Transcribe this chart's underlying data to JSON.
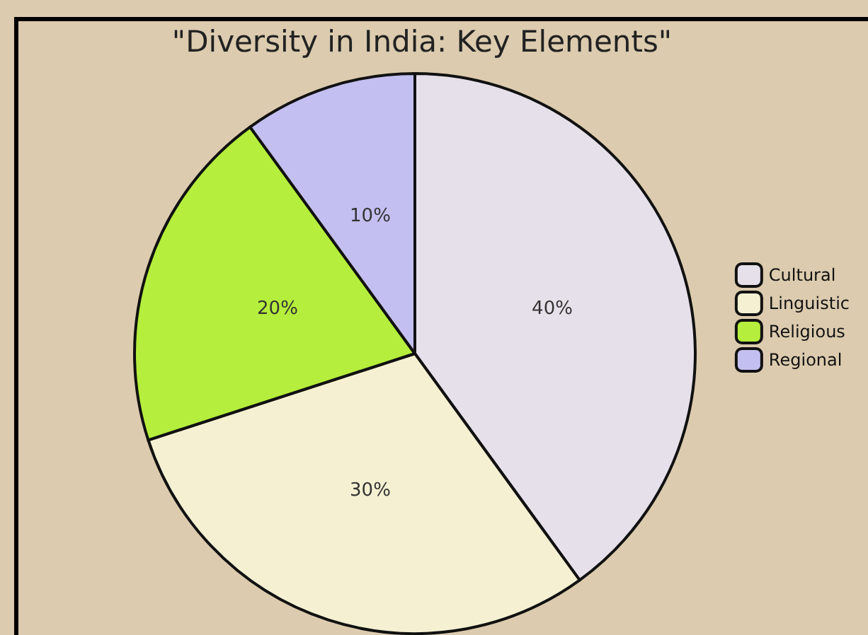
{
  "chart_data": {
    "type": "pie",
    "title": "\"Diversity in India: Key Elements\"",
    "categories": [
      "Cultural",
      "Linguistic",
      "Religious",
      "Regional"
    ],
    "values": [
      40,
      30,
      20,
      10
    ],
    "colors": [
      "#e6e0ea",
      "#f5f0d2",
      "#b5ee3c",
      "#c3bff0"
    ],
    "value_labels": [
      "40%",
      "30%",
      "20%",
      "10%"
    ],
    "legend": "right"
  }
}
